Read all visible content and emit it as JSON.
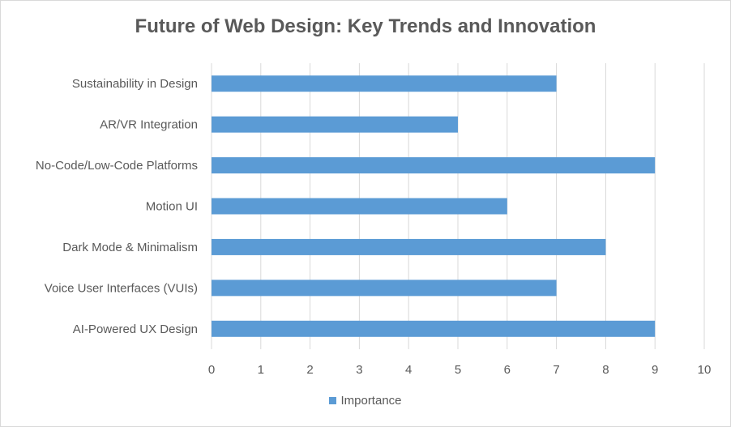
{
  "chart_data": {
    "type": "bar",
    "orientation": "horizontal",
    "title": "Future of Web Design: Key Trends and Innovation",
    "categories": [
      "Sustainability in Design",
      "AR/VR Integration",
      "No-Code/Low-Code Platforms",
      "Motion UI",
      "Dark Mode & Minimalism",
      "Voice User Interfaces (VUIs)",
      "AI-Powered UX Design"
    ],
    "series": [
      {
        "name": "Importance",
        "values": [
          7,
          5,
          9,
          6,
          8,
          7,
          9
        ]
      }
    ],
    "xlim": [
      0,
      10
    ],
    "xticks": [
      "0",
      "1",
      "2",
      "3",
      "4",
      "5",
      "6",
      "7",
      "8",
      "9",
      "10"
    ],
    "grid": "vertical",
    "legend": "bottom",
    "colors": {
      "bar": "#5b9bd5",
      "grid": "#d9d9d9",
      "text": "#595959"
    }
  }
}
